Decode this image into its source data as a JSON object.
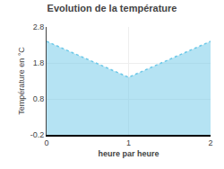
{
  "chart_data": {
    "type": "area",
    "title": "Evolution de la température",
    "xlabel": "heure par heure",
    "ylabel": "Température en °C",
    "x": [
      0,
      1,
      2
    ],
    "values": [
      2.4,
      1.4,
      2.4
    ],
    "color": "#6cc8e8",
    "line_style": "dotted",
    "xlim": [
      0,
      2
    ],
    "ylim": [
      -0.2,
      2.8
    ],
    "xticks": [
      0,
      1,
      2
    ],
    "yticks": [
      -0.2,
      0.8,
      1.8,
      2.8
    ],
    "grid": true
  }
}
